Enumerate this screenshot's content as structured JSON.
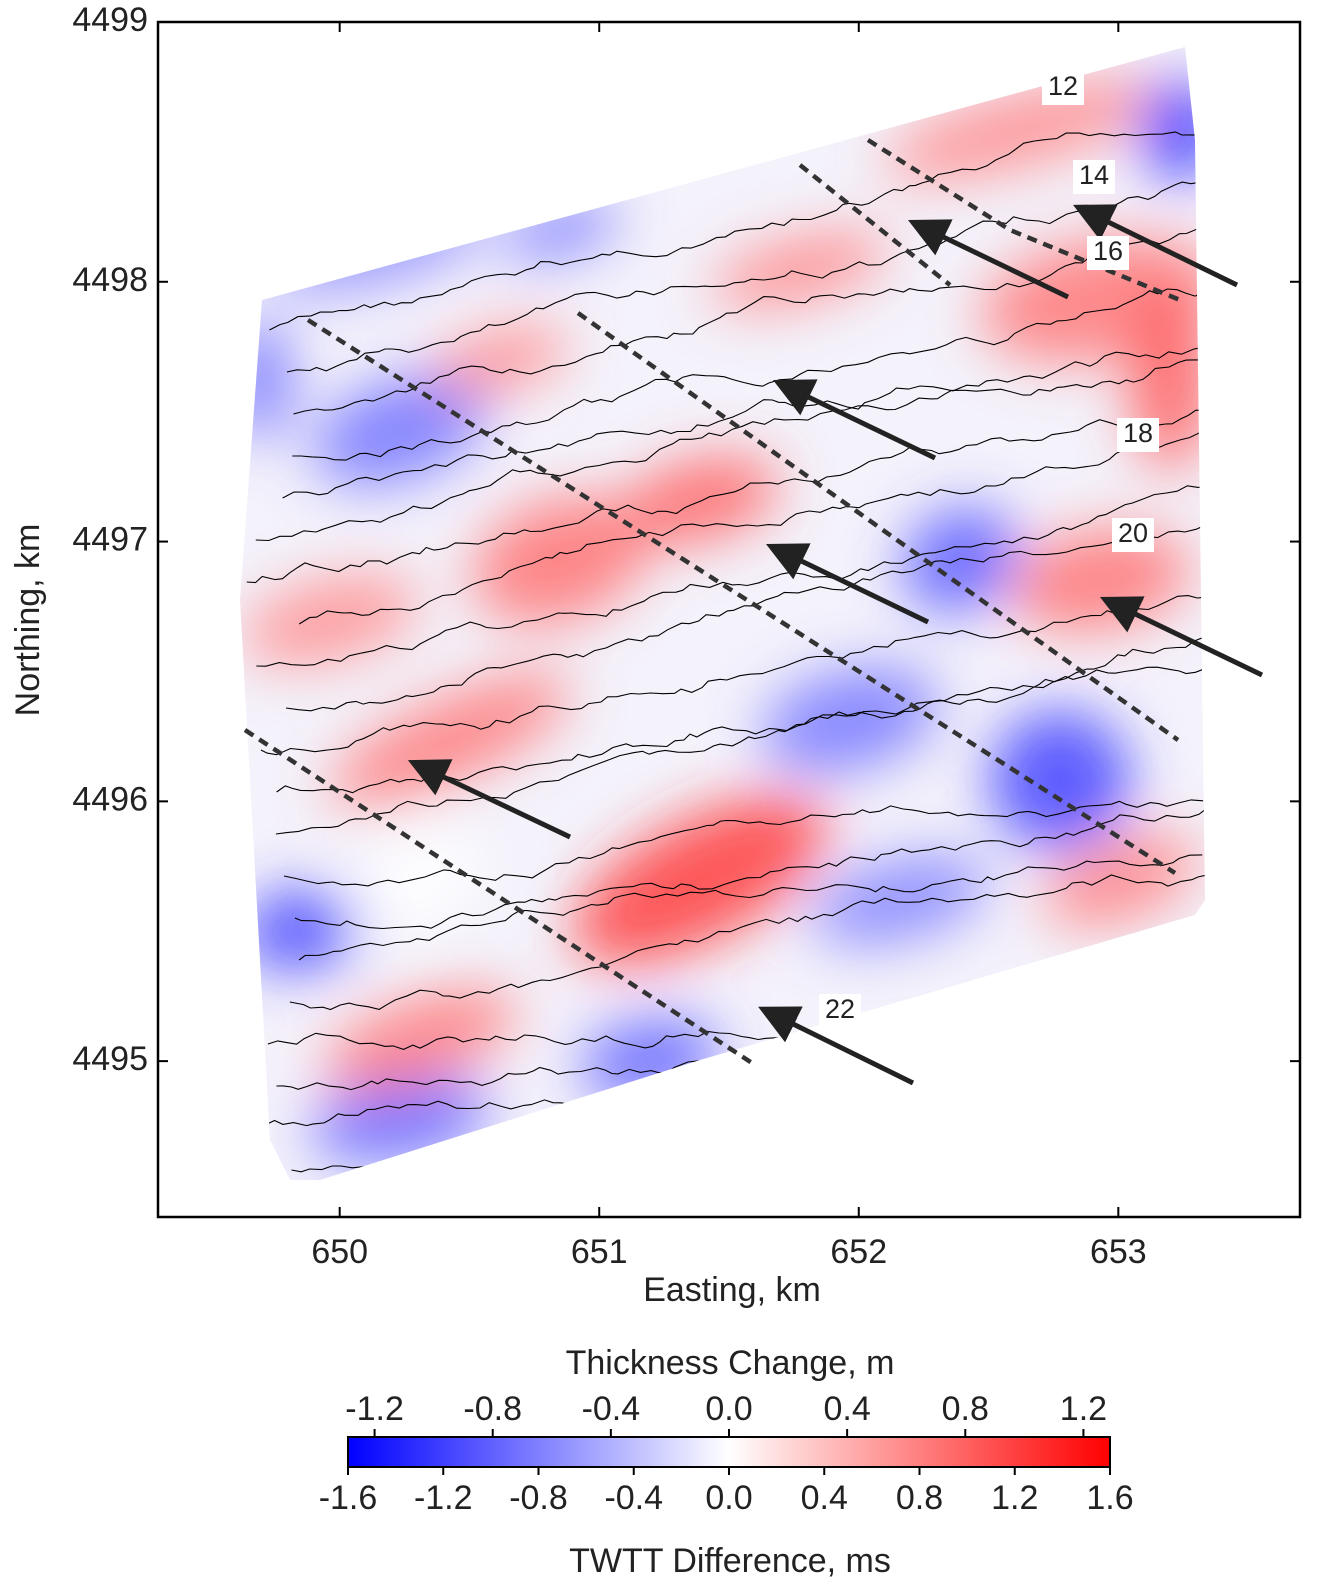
{
  "chart_data": {
    "type": "map",
    "xlabel": "Easting, km",
    "ylabel": "Northing, km",
    "xlim": [
      649.3,
      653.7
    ],
    "xticks": [
      650,
      651,
      652,
      653
    ],
    "ylim": [
      4494.4,
      4499
    ],
    "yticks": [
      4495,
      4496,
      4497,
      4498,
      4499
    ],
    "contour_labels": [
      "12",
      "14",
      "16",
      "18",
      "20",
      "22"
    ],
    "colorbar": {
      "colors": [
        "#0000ff",
        "#ffffff",
        "#ff0000"
      ],
      "top_label": "Thickness Change, m",
      "top_lim": [
        -1.29,
        1.29
      ],
      "top_ticks": [
        -1.2,
        -0.8,
        -0.4,
        {
          "value": 0,
          "label": "0.0"
        },
        0.4,
        0.8,
        1.2
      ],
      "bottom_label": "TWTT Difference, ms",
      "bottom_lim": [
        -1.6,
        1.6
      ],
      "bottom_ticks": [
        -1.6,
        -1.2,
        -0.8,
        -0.4,
        {
          "value": 0,
          "label": "0.0"
        },
        0.4,
        0.8,
        1.2,
        1.6
      ]
    }
  }
}
